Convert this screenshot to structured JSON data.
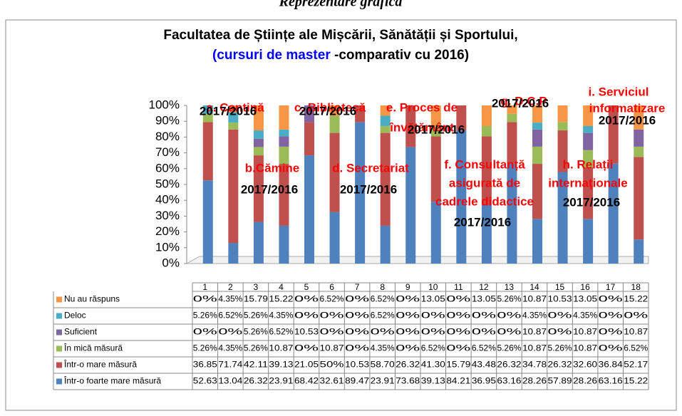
{
  "header": "Reprezentare grafică",
  "chart_data": {
    "type": "stacked_bar",
    "title": [
      "Facultatea de Științe ale Mișcării, Sănătății și Sportului,",
      "(cursuri de master",
      " -comparativ cu 2016)"
    ],
    "title_colors": [
      "#000000",
      "#0000ff",
      "#000000"
    ],
    "categories": [
      "1",
      "2",
      "3",
      "4",
      "5",
      "6",
      "7",
      "8",
      "9",
      "10",
      "11",
      "12",
      "13",
      "14",
      "15",
      "16",
      "17",
      "18"
    ],
    "ylim": [
      0,
      100
    ],
    "yticks": [
      {
        "value": 0,
        "label": "0%"
      },
      {
        "value": 10,
        "label": "10%"
      },
      {
        "value": 20,
        "label": "20%"
      },
      {
        "value": 30,
        "label": "30%"
      },
      {
        "value": 40,
        "label": "40%"
      },
      {
        "value": 50,
        "label": "50%"
      },
      {
        "value": 60,
        "label": "60%"
      },
      {
        "value": 70,
        "label": "70%"
      },
      {
        "value": 80,
        "label": "80%"
      },
      {
        "value": 90,
        "label": "90%"
      },
      {
        "value": 100,
        "label": "100%"
      }
    ],
    "grid": false,
    "series": [
      {
        "name": "Nu au răspuns",
        "color": "#f79646",
        "values": [
          0,
          4.35,
          15.79,
          15.22,
          0,
          6.52,
          0,
          6.52,
          0,
          13.05,
          0,
          13.05,
          5.26,
          10.87,
          10.53,
          13.05,
          0,
          15.22
        ],
        "value_labels": [
          "0%",
          "4.35%",
          "15.79",
          "15.22",
          "0%",
          "6.52%",
          "0%",
          "6.52%",
          "0%",
          "13.05",
          "0%",
          "13.05",
          "5.26%",
          "10.87",
          "10.53",
          "13.05",
          "0%",
          "15.22"
        ]
      },
      {
        "name": "Deloc",
        "color": "#4bacc6",
        "values": [
          5.26,
          6.52,
          5.26,
          4.35,
          0,
          0,
          0,
          6.52,
          0,
          0,
          0,
          0,
          0,
          4.35,
          0,
          4.35,
          0,
          0
        ],
        "value_labels": [
          "5.26%",
          "6.52%",
          "5.26%",
          "4.35%",
          "0%",
          "0%",
          "0%",
          "6.52%",
          "0%",
          "0%",
          "0%",
          "0%",
          "0%",
          "4.35%",
          "0%",
          "4.35%",
          "0%",
          "0%"
        ]
      },
      {
        "name": "Suficient",
        "color": "#8064a2",
        "values": [
          0,
          0,
          5.26,
          6.52,
          10.53,
          0,
          0,
          0,
          0,
          0,
          0,
          0,
          0,
          10.87,
          0,
          10.87,
          0,
          10.87
        ],
        "value_labels": [
          "0%",
          "0%",
          "5.26%",
          "6.52%",
          "10.53",
          "0%",
          "0%",
          "0%",
          "0%",
          "0%",
          "0%",
          "0%",
          "0%",
          "10.87",
          "0%",
          "10.87",
          "0%",
          "10.87"
        ]
      },
      {
        "name": "În mică măsură",
        "color": "#9bbb59",
        "values": [
          5.26,
          4.35,
          5.26,
          10.87,
          0,
          10.87,
          0,
          4.35,
          0,
          6.52,
          0,
          6.52,
          5.26,
          10.87,
          5.26,
          10.87,
          0,
          6.52
        ],
        "value_labels": [
          "5.26%",
          "4.35%",
          "5.26%",
          "10.87",
          "0%",
          "10.87",
          "0%",
          "4.35%",
          "0%",
          "6.52%",
          "0%",
          "6.52%",
          "5.26%",
          "10.87",
          "5.26%",
          "10.87",
          "0%",
          "6.52%"
        ]
      },
      {
        "name": "Într-o mare măsură",
        "color": "#c0504d",
        "values": [
          36.85,
          71.74,
          42.11,
          39.13,
          21.05,
          50,
          10.53,
          58.7,
          26.32,
          41.3,
          15.79,
          43.48,
          26.32,
          34.78,
          26.32,
          32.6,
          36.84,
          52.17
        ],
        "value_labels": [
          "36.85",
          "71.74",
          "42.11",
          "39.13",
          "21.05",
          "50%",
          "10.53",
          "58.70",
          "26.32",
          "41.30",
          "15.79",
          "43.48",
          "26.32",
          "34.78",
          "26.32",
          "32.60",
          "36.84",
          "52.17"
        ]
      },
      {
        "name": "Într-o foarte mare măsură",
        "color": "#4f81bd",
        "values": [
          52.63,
          13.04,
          26.32,
          23.91,
          68.42,
          32.61,
          89.47,
          23.91,
          73.68,
          39.13,
          84.21,
          36.95,
          63.16,
          28.26,
          57.89,
          28.26,
          63.16,
          15.22
        ],
        "value_labels": [
          "52.63",
          "13.04",
          "26.32",
          "23.91",
          "68.42",
          "32.61",
          "89.47",
          "23.91",
          "73.68",
          "39.13",
          "84.21",
          "36.95",
          "63.16",
          "28.26",
          "57.89",
          "28.26",
          "63.16",
          "15.22"
        ]
      }
    ],
    "annotations": [
      {
        "text": "a. Cantină",
        "color": "#ff0000"
      },
      {
        "text": "c. Bibliotecă",
        "color": "#ff0000"
      },
      {
        "text": "e. Proces de",
        "color": "#ff0000"
      },
      {
        "text": "învățământ",
        "color": "#ff0000"
      },
      {
        "text": "g. D.C.P",
        "color": "#ff0000"
      },
      {
        "text": "i. Serviciul",
        "color": "#ff0000"
      },
      {
        "text": "informatizare",
        "color": "#ff0000"
      },
      {
        "text": "b.Cămine",
        "color": "#ff0000"
      },
      {
        "text": "d. Secretariat",
        "color": "#ff0000"
      },
      {
        "text": "f. Consultanță",
        "color": "#ff0000"
      },
      {
        "text": "asigurată de",
        "color": "#ff0000"
      },
      {
        "text": "cadrele didactice",
        "color": "#ff0000"
      },
      {
        "text": "h. Relații",
        "color": "#ff0000"
      },
      {
        "text": "internaționale",
        "color": "#ff0000"
      },
      {
        "text": "2017/2016",
        "color": "#000000"
      },
      {
        "text": "2017/2016",
        "color": "#000000"
      },
      {
        "text": "2017/2016",
        "color": "#000000"
      },
      {
        "text": "2017/2016",
        "color": "#000000"
      },
      {
        "text": "2017/2016",
        "color": "#000000"
      },
      {
        "text": "2017/2016",
        "color": "#000000"
      },
      {
        "text": "2017/2016",
        "color": "#000000"
      },
      {
        "text": "2017/2016",
        "color": "#000000"
      },
      {
        "text": "2017/2016",
        "color": "#000000"
      }
    ]
  }
}
